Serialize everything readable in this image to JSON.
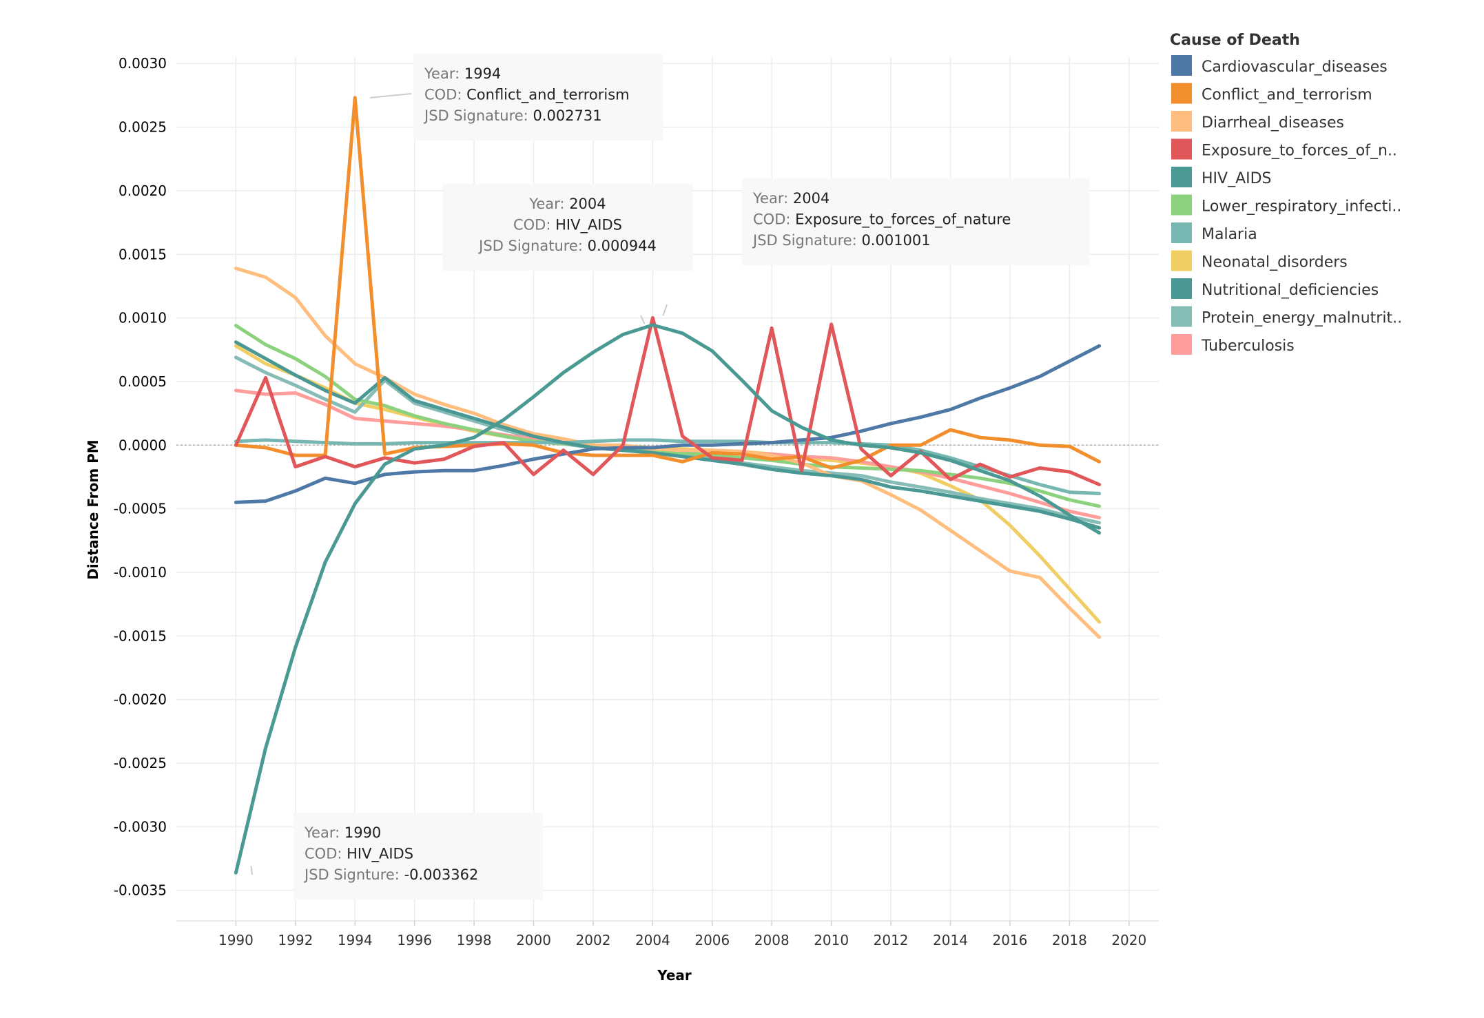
{
  "chart_data": {
    "type": "line",
    "xlabel": "Year",
    "ylabel": "Distance From PM",
    "xlim": [
      1988,
      2021
    ],
    "ylim": [
      -0.00374,
      0.00305
    ],
    "x_ticks": [
      1990,
      1992,
      1994,
      1996,
      1998,
      2000,
      2002,
      2004,
      2006,
      2008,
      2010,
      2012,
      2014,
      2016,
      2018,
      2020
    ],
    "y_ticks": [
      0.003,
      0.0025,
      0.002,
      0.0015,
      0.001,
      0.0005,
      0,
      -0.0005,
      -0.001,
      -0.0015,
      -0.002,
      -0.0025,
      -0.003,
      -0.0035
    ],
    "y_tick_labels": [
      "0.0030",
      "0.0025",
      "0.0020",
      "0.0015",
      "0.0010",
      "0.0005",
      "0.0000",
      "-0.0005",
      "-0.0010",
      "-0.0015",
      "-0.0020",
      "-0.0025",
      "-0.0030",
      "-0.0035"
    ],
    "grid": true,
    "zero_reference_line": true,
    "legend": {
      "title": "Cause of Death",
      "placement": "right"
    },
    "x": [
      1990,
      1991,
      1992,
      1993,
      1994,
      1995,
      1996,
      1997,
      1998,
      1999,
      2000,
      2001,
      2002,
      2003,
      2004,
      2005,
      2006,
      2007,
      2008,
      2009,
      2010,
      2011,
      2012,
      2013,
      2014,
      2015,
      2016,
      2017,
      2018,
      2019
    ],
    "series": [
      {
        "name": "Cardiovascular_diseases",
        "legend_label": "Cardiovascular_diseases",
        "color": "#4e79a7",
        "values": [
          -0.00045,
          -0.00044,
          -0.00036,
          -0.00026,
          -0.0003,
          -0.00023,
          -0.00021,
          -0.0002,
          -0.0002,
          -0.00016,
          -0.00011,
          -7e-05,
          -3e-05,
          -2e-05,
          -2e-05,
          0.0,
          0.0,
          1e-05,
          2e-05,
          4e-05,
          6e-05,
          0.00011,
          0.00017,
          0.00022,
          0.00028,
          0.00037,
          0.00045,
          0.00054,
          0.00066,
          0.00078
        ]
      },
      {
        "name": "Conflict_and_terrorism",
        "legend_label": "Conflict_and_terrorism",
        "color": "#f28e2b",
        "values": [
          0.0,
          -2e-05,
          -8e-05,
          -8e-05,
          0.002731,
          -7e-05,
          -2e-05,
          -1e-05,
          0.0,
          1e-05,
          0.0,
          -6e-05,
          -8e-05,
          -8e-05,
          -8e-05,
          -0.00013,
          -6e-05,
          -7e-05,
          -0.00011,
          -9e-05,
          -0.00018,
          -0.00012,
          0.0,
          0.0,
          0.00012,
          6e-05,
          4e-05,
          0.0,
          -1e-05,
          -0.00013
        ]
      },
      {
        "name": "Diarrheal_diseases",
        "legend_label": "Diarrheal_diseases",
        "color": "#ffbe7d",
        "values": [
          0.00139,
          0.00132,
          0.00116,
          0.00086,
          0.00064,
          0.00053,
          0.0004,
          0.00032,
          0.00025,
          0.00016,
          9e-05,
          5e-05,
          0.0,
          0.0,
          -3e-05,
          -4e-05,
          -4e-05,
          -5e-05,
          -8e-05,
          -0.00014,
          -0.00024,
          -0.00028,
          -0.00039,
          -0.00051,
          -0.00067,
          -0.00083,
          -0.00099,
          -0.00104,
          -0.00128,
          -0.00151
        ]
      },
      {
        "name": "Exposure_to_forces_of_nature",
        "legend_label": "Exposure_to_forces_of_n..",
        "color": "#e15759",
        "values": [
          0.0,
          0.00053,
          -0.00017,
          -9e-05,
          -0.00017,
          -0.0001,
          -0.00014,
          -0.00011,
          -1e-05,
          2e-05,
          -0.00023,
          -4e-05,
          -0.00023,
          0.0,
          0.001001,
          7e-05,
          -0.0001,
          -0.00012,
          0.00092,
          -0.0002,
          0.00095,
          -3e-05,
          -0.00024,
          -5e-05,
          -0.00027,
          -0.00015,
          -0.00025,
          -0.00018,
          -0.00021,
          -0.00031
        ]
      },
      {
        "name": "HIV_AIDS",
        "legend_label": "HIV_AIDS",
        "color": "#4a9a93",
        "values": [
          -0.003362,
          -0.00238,
          -0.00159,
          -0.00092,
          -0.00046,
          -0.00015,
          -3e-05,
          0.0,
          6e-05,
          0.0002,
          0.00038,
          0.00057,
          0.00073,
          0.00087,
          0.000944,
          0.00088,
          0.00074,
          0.00051,
          0.00027,
          0.00014,
          4e-05,
          0.0,
          -2e-05,
          -6e-05,
          -0.00012,
          -0.0002,
          -0.00028,
          -0.0004,
          -0.00055,
          -0.00069
        ]
      },
      {
        "name": "Lower_respiratory_infections",
        "legend_label": "Lower_respiratory_infecti..",
        "color": "#8cd17d",
        "values": [
          0.00094,
          0.00079,
          0.00068,
          0.00054,
          0.00036,
          0.00031,
          0.00023,
          0.00017,
          0.00012,
          7e-05,
          3e-05,
          1e-05,
          0.0,
          -2e-05,
          -4e-05,
          -6e-05,
          -8e-05,
          -0.0001,
          -0.00012,
          -0.00015,
          -0.00017,
          -0.00018,
          -0.00019,
          -0.0002,
          -0.00023,
          -0.00026,
          -0.0003,
          -0.00036,
          -0.00043,
          -0.00048
        ]
      },
      {
        "name": "Malaria",
        "legend_label": "Malaria",
        "color": "#76b7b2",
        "values": [
          3e-05,
          4e-05,
          3e-05,
          2e-05,
          1e-05,
          1e-05,
          2e-05,
          2e-05,
          2e-05,
          2e-05,
          2e-05,
          2e-05,
          3e-05,
          4e-05,
          4e-05,
          3e-05,
          3e-05,
          3e-05,
          2e-05,
          2e-05,
          2e-05,
          1e-05,
          0.0,
          -4e-05,
          -0.0001,
          -0.00017,
          -0.00024,
          -0.00031,
          -0.00037,
          -0.00038
        ]
      },
      {
        "name": "Neonatal_disorders",
        "legend_label": "Neonatal_disorders",
        "color": "#f1ce63",
        "values": [
          0.00078,
          0.00064,
          0.00055,
          0.00045,
          0.00033,
          0.00028,
          0.00022,
          0.00016,
          0.00011,
          7e-05,
          3e-05,
          1e-05,
          0.0,
          -1e-05,
          -2e-05,
          -3e-05,
          -4e-05,
          -5e-05,
          -7e-05,
          -0.0001,
          -0.00012,
          -0.00014,
          -0.00017,
          -0.00022,
          -0.00032,
          -0.00043,
          -0.00063,
          -0.00087,
          -0.00113,
          -0.00139
        ]
      },
      {
        "name": "Nutritional_deficiencies",
        "legend_label": "Nutritional_deficiencies",
        "color": "#499894",
        "values": [
          0.00081,
          0.00068,
          0.00055,
          0.00043,
          0.00033,
          0.00053,
          0.00035,
          0.00028,
          0.00021,
          0.00014,
          7e-05,
          2e-05,
          -2e-05,
          -4e-05,
          -6e-05,
          -9e-05,
          -0.00012,
          -0.00015,
          -0.00019,
          -0.00022,
          -0.00024,
          -0.00027,
          -0.00033,
          -0.00036,
          -0.0004,
          -0.00044,
          -0.00048,
          -0.00052,
          -0.00058,
          -0.00065
        ]
      },
      {
        "name": "Protein_energy_malnutrition",
        "legend_label": "Protein_energy_malnutrit..",
        "color": "#86bcb6",
        "values": [
          0.00069,
          0.00057,
          0.00047,
          0.00036,
          0.00026,
          0.00051,
          0.00033,
          0.00026,
          0.00019,
          0.00012,
          6e-05,
          1e-05,
          -2e-05,
          -4e-05,
          -6e-05,
          -8e-05,
          -0.00011,
          -0.00014,
          -0.00017,
          -0.0002,
          -0.00022,
          -0.00024,
          -0.00029,
          -0.00033,
          -0.00037,
          -0.00042,
          -0.00046,
          -0.0005,
          -0.00056,
          -0.00061
        ]
      },
      {
        "name": "Tuberculosis",
        "legend_label": "Tuberculosis",
        "color": "#ff9d9a",
        "values": [
          0.00043,
          0.0004,
          0.00041,
          0.00032,
          0.00021,
          0.00019,
          0.00017,
          0.00015,
          0.00012,
          8e-05,
          5e-05,
          2e-05,
          0.0,
          -2e-05,
          -3e-05,
          -4e-05,
          -5e-05,
          -6e-05,
          -7e-05,
          -9e-05,
          -0.0001,
          -0.00013,
          -0.00017,
          -0.00021,
          -0.00026,
          -0.00032,
          -0.00038,
          -0.00045,
          -0.00052,
          -0.00057
        ]
      }
    ],
    "series_draw_order": [
      7,
      9,
      10,
      5,
      2,
      6,
      8,
      1,
      0,
      3,
      4
    ],
    "annotations": [
      {
        "year_key": "Year",
        "year": "1994",
        "cod_key": "COD",
        "cod": "Conflict_and_terrorism",
        "value_key": "JSD Signature",
        "value": "0.002731",
        "align": "left",
        "point_x": 1994,
        "point_y": 0.002731
      },
      {
        "year_key": "Year",
        "year": "2004",
        "cod_key": "COD",
        "cod": "HIV_AIDS",
        "value_key": "JSD Signature",
        "value": "0.000944",
        "align": "center",
        "point_x": 2004,
        "point_y": 0.000944
      },
      {
        "year_key": "Year",
        "year": "2004",
        "cod_key": "COD",
        "cod": "Exposure_to_forces_of_nature",
        "value_key": "JSD Signature",
        "value": "0.001001",
        "align": "left",
        "point_x": 2004,
        "point_y": 0.001001
      },
      {
        "year_key": "Year",
        "year": "1990",
        "cod_key": "COD",
        "cod": "HIV_AIDS",
        "value_key": "JSD Signture",
        "value": "-0.003362",
        "align": "left",
        "point_x": 1990,
        "point_y": -0.003362
      }
    ]
  }
}
